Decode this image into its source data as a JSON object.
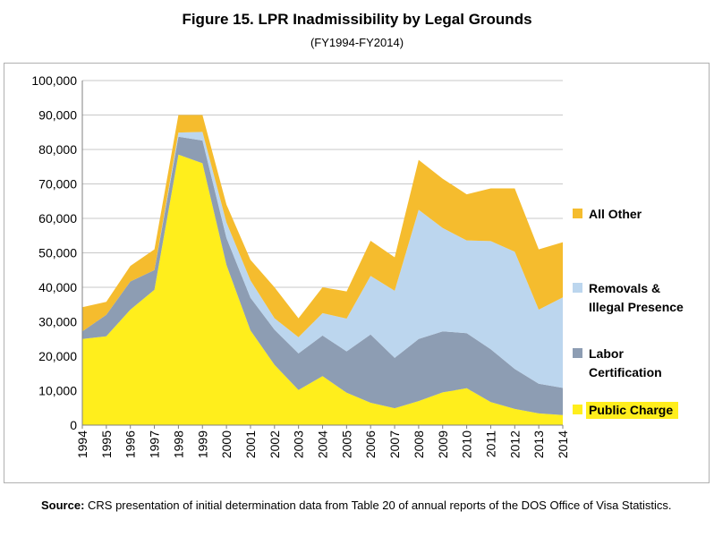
{
  "chart_data": {
    "type": "area",
    "stacked": true,
    "title": "Figure 15. LPR Inadmissibility by Legal Grounds",
    "subtitle": "(FY1994-FY2014)",
    "categories": [
      "1994",
      "1995",
      "1996",
      "1997",
      "1998",
      "1999",
      "2000",
      "2001",
      "2002",
      "2003",
      "2004",
      "2005",
      "2006",
      "2007",
      "2008",
      "2009",
      "2010",
      "2011",
      "2012",
      "2013",
      "2014"
    ],
    "ylim": [
      0,
      100000
    ],
    "yticks": [
      "0",
      "10,000",
      "20,000",
      "30,000",
      "40,000",
      "50,000",
      "60,000",
      "70,000",
      "80,000",
      "90,000",
      "100,000"
    ],
    "grid": true,
    "legend_position": "right",
    "series": [
      {
        "name": "Public Charge",
        "color": "#ffee1c",
        "values": [
          25000,
          25800,
          33500,
          39300,
          78500,
          76000,
          46500,
          27500,
          17500,
          10200,
          14200,
          9400,
          6500,
          4900,
          7000,
          9500,
          10700,
          6700,
          4700,
          3400,
          2900
        ]
      },
      {
        "name": "Labor Certification",
        "color": "#8d9db3",
        "values": [
          2200,
          6200,
          8200,
          5700,
          5200,
          6600,
          7800,
          9500,
          10200,
          10600,
          11800,
          12000,
          19800,
          14600,
          18000,
          17700,
          16000,
          15300,
          11600,
          8600,
          7900
        ]
      },
      {
        "name": "Removals & Illegal Presence",
        "color": "#bcd6ee",
        "values": [
          0,
          0,
          0,
          0,
          1200,
          2500,
          4500,
          5000,
          3300,
          4700,
          6500,
          9500,
          17000,
          19500,
          37500,
          30000,
          26900,
          31400,
          34000,
          21500,
          26300
        ]
      },
      {
        "name": "All Other",
        "color": "#f5bc2e",
        "values": [
          7000,
          3800,
          4500,
          6000,
          5100,
          4900,
          5200,
          6000,
          9000,
          5500,
          7500,
          7900,
          10200,
          9700,
          14500,
          14300,
          13400,
          15300,
          18400,
          17500,
          16000
        ]
      }
    ]
  },
  "legend": [
    {
      "label": "All Other",
      "color": "#f5bc2e"
    },
    {
      "label": "Removals &",
      "label2": "Illegal Presence",
      "color": "#bcd6ee"
    },
    {
      "label": "Labor",
      "label2": "Certification",
      "color": "#8d9db3"
    },
    {
      "label": "Public Charge",
      "color": "#ffee1c",
      "highlight": "#ffee1c"
    }
  ],
  "source": {
    "prefix": "Source:",
    "text": " CRS presentation of initial determination data from Table 20 of annual reports of the DOS Office of Visa Statistics."
  }
}
